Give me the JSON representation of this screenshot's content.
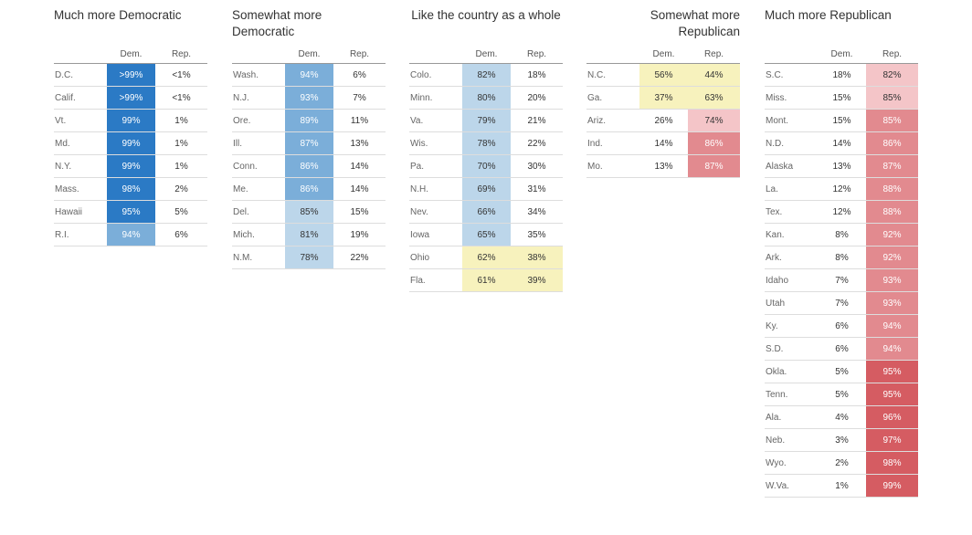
{
  "chart_data": {
    "type": "table",
    "columns": [
      "Dem.",
      "Rep."
    ],
    "colors": {
      "dem_darkest": "#2b7ac5",
      "dem_dark": "#7baed9",
      "dem_light": "#bcd6ea",
      "tossup": "#f7f2bd",
      "rep_light": "#f4c5c8",
      "rep_mid": "#e28a8f",
      "rep_dark": "#d55c62"
    },
    "groups": [
      {
        "title": "Much more Democratic",
        "align": "left",
        "rows": [
          {
            "state": "D.C.",
            "dem": ">99%",
            "rep": "<1%",
            "dem_shade": "dem_darkest",
            "rep_shade": null
          },
          {
            "state": "Calif.",
            "dem": ">99%",
            "rep": "<1%",
            "dem_shade": "dem_darkest",
            "rep_shade": null
          },
          {
            "state": "Vt.",
            "dem": "99%",
            "rep": "1%",
            "dem_shade": "dem_darkest",
            "rep_shade": null
          },
          {
            "state": "Md.",
            "dem": "99%",
            "rep": "1%",
            "dem_shade": "dem_darkest",
            "rep_shade": null
          },
          {
            "state": "N.Y.",
            "dem": "99%",
            "rep": "1%",
            "dem_shade": "dem_darkest",
            "rep_shade": null
          },
          {
            "state": "Mass.",
            "dem": "98%",
            "rep": "2%",
            "dem_shade": "dem_darkest",
            "rep_shade": null
          },
          {
            "state": "Hawaii",
            "dem": "95%",
            "rep": "5%",
            "dem_shade": "dem_darkest",
            "rep_shade": null
          },
          {
            "state": "R.I.",
            "dem": "94%",
            "rep": "6%",
            "dem_shade": "dem_dark",
            "rep_shade": null
          }
        ]
      },
      {
        "title": "Somewhat more Democratic",
        "align": "left",
        "rows": [
          {
            "state": "Wash.",
            "dem": "94%",
            "rep": "6%",
            "dem_shade": "dem_dark",
            "rep_shade": null
          },
          {
            "state": "N.J.",
            "dem": "93%",
            "rep": "7%",
            "dem_shade": "dem_dark",
            "rep_shade": null
          },
          {
            "state": "Ore.",
            "dem": "89%",
            "rep": "11%",
            "dem_shade": "dem_dark",
            "rep_shade": null
          },
          {
            "state": "Ill.",
            "dem": "87%",
            "rep": "13%",
            "dem_shade": "dem_dark",
            "rep_shade": null
          },
          {
            "state": "Conn.",
            "dem": "86%",
            "rep": "14%",
            "dem_shade": "dem_dark",
            "rep_shade": null
          },
          {
            "state": "Me.",
            "dem": "86%",
            "rep": "14%",
            "dem_shade": "dem_dark",
            "rep_shade": null
          },
          {
            "state": "Del.",
            "dem": "85%",
            "rep": "15%",
            "dem_shade": "dem_light",
            "rep_shade": null
          },
          {
            "state": "Mich.",
            "dem": "81%",
            "rep": "19%",
            "dem_shade": "dem_light",
            "rep_shade": null
          },
          {
            "state": "N.M.",
            "dem": "78%",
            "rep": "22%",
            "dem_shade": "dem_light",
            "rep_shade": null
          }
        ]
      },
      {
        "title": "Like the country as a whole",
        "align": "center",
        "rows": [
          {
            "state": "Colo.",
            "dem": "82%",
            "rep": "18%",
            "dem_shade": "dem_light",
            "rep_shade": null
          },
          {
            "state": "Minn.",
            "dem": "80%",
            "rep": "20%",
            "dem_shade": "dem_light",
            "rep_shade": null
          },
          {
            "state": "Va.",
            "dem": "79%",
            "rep": "21%",
            "dem_shade": "dem_light",
            "rep_shade": null
          },
          {
            "state": "Wis.",
            "dem": "78%",
            "rep": "22%",
            "dem_shade": "dem_light",
            "rep_shade": null
          },
          {
            "state": "Pa.",
            "dem": "70%",
            "rep": "30%",
            "dem_shade": "dem_light",
            "rep_shade": null
          },
          {
            "state": "N.H.",
            "dem": "69%",
            "rep": "31%",
            "dem_shade": "dem_light",
            "rep_shade": null
          },
          {
            "state": "Nev.",
            "dem": "66%",
            "rep": "34%",
            "dem_shade": "dem_light",
            "rep_shade": null
          },
          {
            "state": "Iowa",
            "dem": "65%",
            "rep": "35%",
            "dem_shade": "dem_light",
            "rep_shade": null
          },
          {
            "state": "Ohio",
            "dem": "62%",
            "rep": "38%",
            "dem_shade": "tossup",
            "rep_shade": "tossup"
          },
          {
            "state": "Fla.",
            "dem": "61%",
            "rep": "39%",
            "dem_shade": "tossup",
            "rep_shade": "tossup"
          }
        ]
      },
      {
        "title": "Somewhat more Republican",
        "align": "right",
        "rows": [
          {
            "state": "N.C.",
            "dem": "56%",
            "rep": "44%",
            "dem_shade": "tossup",
            "rep_shade": "tossup"
          },
          {
            "state": "Ga.",
            "dem": "37%",
            "rep": "63%",
            "dem_shade": "tossup",
            "rep_shade": "tossup"
          },
          {
            "state": "Ariz.",
            "dem": "26%",
            "rep": "74%",
            "dem_shade": null,
            "rep_shade": "rep_light"
          },
          {
            "state": "Ind.",
            "dem": "14%",
            "rep": "86%",
            "dem_shade": null,
            "rep_shade": "rep_mid"
          },
          {
            "state": "Mo.",
            "dem": "13%",
            "rep": "87%",
            "dem_shade": null,
            "rep_shade": "rep_mid"
          }
        ]
      },
      {
        "title": "Much more Republican",
        "align": "left",
        "rows": [
          {
            "state": "S.C.",
            "dem": "18%",
            "rep": "82%",
            "dem_shade": null,
            "rep_shade": "rep_light"
          },
          {
            "state": "Miss.",
            "dem": "15%",
            "rep": "85%",
            "dem_shade": null,
            "rep_shade": "rep_light"
          },
          {
            "state": "Mont.",
            "dem": "15%",
            "rep": "85%",
            "dem_shade": null,
            "rep_shade": "rep_mid"
          },
          {
            "state": "N.D.",
            "dem": "14%",
            "rep": "86%",
            "dem_shade": null,
            "rep_shade": "rep_mid"
          },
          {
            "state": "Alaska",
            "dem": "13%",
            "rep": "87%",
            "dem_shade": null,
            "rep_shade": "rep_mid"
          },
          {
            "state": "La.",
            "dem": "12%",
            "rep": "88%",
            "dem_shade": null,
            "rep_shade": "rep_mid"
          },
          {
            "state": "Tex.",
            "dem": "12%",
            "rep": "88%",
            "dem_shade": null,
            "rep_shade": "rep_mid"
          },
          {
            "state": "Kan.",
            "dem": "8%",
            "rep": "92%",
            "dem_shade": null,
            "rep_shade": "rep_mid"
          },
          {
            "state": "Ark.",
            "dem": "8%",
            "rep": "92%",
            "dem_shade": null,
            "rep_shade": "rep_mid"
          },
          {
            "state": "Idaho",
            "dem": "7%",
            "rep": "93%",
            "dem_shade": null,
            "rep_shade": "rep_mid"
          },
          {
            "state": "Utah",
            "dem": "7%",
            "rep": "93%",
            "dem_shade": null,
            "rep_shade": "rep_mid"
          },
          {
            "state": "Ky.",
            "dem": "6%",
            "rep": "94%",
            "dem_shade": null,
            "rep_shade": "rep_mid"
          },
          {
            "state": "S.D.",
            "dem": "6%",
            "rep": "94%",
            "dem_shade": null,
            "rep_shade": "rep_mid"
          },
          {
            "state": "Okla.",
            "dem": "5%",
            "rep": "95%",
            "dem_shade": null,
            "rep_shade": "rep_dark"
          },
          {
            "state": "Tenn.",
            "dem": "5%",
            "rep": "95%",
            "dem_shade": null,
            "rep_shade": "rep_dark"
          },
          {
            "state": "Ala.",
            "dem": "4%",
            "rep": "96%",
            "dem_shade": null,
            "rep_shade": "rep_dark"
          },
          {
            "state": "Neb.",
            "dem": "3%",
            "rep": "97%",
            "dem_shade": null,
            "rep_shade": "rep_dark"
          },
          {
            "state": "Wyo.",
            "dem": "2%",
            "rep": "98%",
            "dem_shade": null,
            "rep_shade": "rep_dark"
          },
          {
            "state": "W.Va.",
            "dem": "1%",
            "rep": "99%",
            "dem_shade": null,
            "rep_shade": "rep_dark"
          }
        ]
      }
    ]
  }
}
